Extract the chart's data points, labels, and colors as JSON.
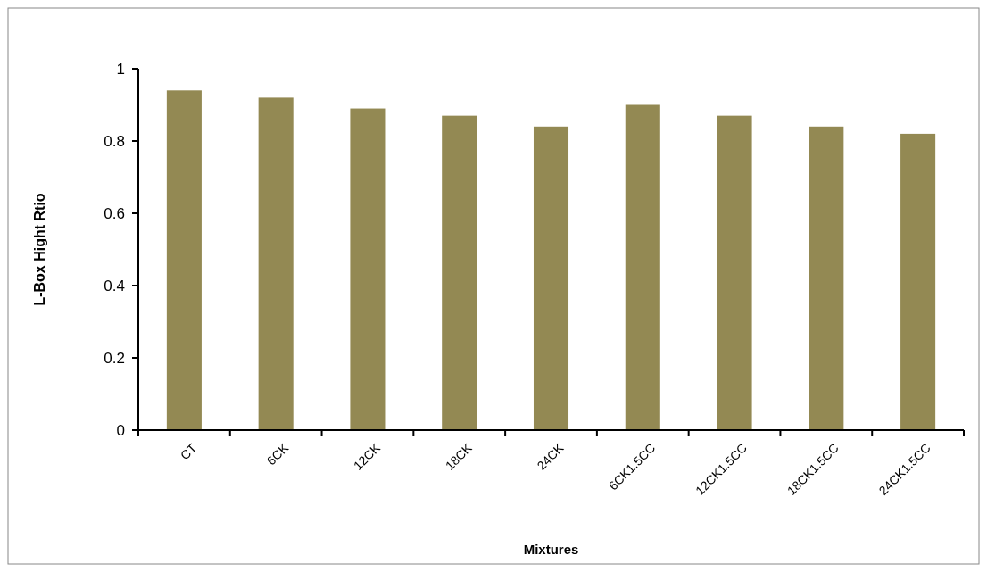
{
  "chart_data": {
    "type": "bar",
    "xlabel": "Mixtures",
    "ylabel": "L-Box  Hight Rtio",
    "categories": [
      "CT",
      "6CK",
      "12CK",
      "18CK",
      "24CK",
      "6CK1.5CC",
      "12CK1.5CC",
      "18CK1.5CC",
      "24CK1.5CC"
    ],
    "values": [
      0.94,
      0.92,
      0.89,
      0.87,
      0.84,
      0.9,
      0.87,
      0.84,
      0.82
    ],
    "color": "#938953",
    "ylim": [
      0,
      1
    ],
    "yticks": [
      0,
      0.2,
      0.4,
      0.6,
      0.8,
      1
    ],
    "grid": false
  }
}
